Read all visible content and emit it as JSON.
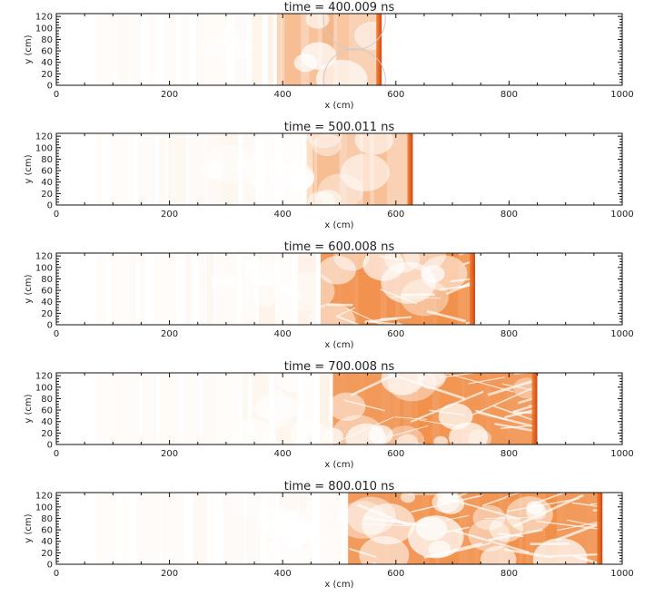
{
  "chart_data": [
    {
      "type": "heatmap",
      "title_prefix": "time =",
      "time_value": "400.009",
      "time_unit": "ns",
      "xlabel": "x (cm)",
      "ylabel": "y (cm)",
      "xlim": [
        0,
        1000
      ],
      "ylim": [
        0,
        125
      ],
      "x_ticks": [
        0,
        200,
        400,
        600,
        800,
        1000
      ],
      "y_ticks": [
        0,
        20,
        40,
        60,
        80,
        100,
        120
      ],
      "front_x": 575
    },
    {
      "type": "heatmap",
      "title_prefix": "time =",
      "time_value": "500.011",
      "time_unit": "ns",
      "xlabel": "x (cm)",
      "ylabel": "y (cm)",
      "xlim": [
        0,
        1000
      ],
      "ylim": [
        0,
        125
      ],
      "x_ticks": [
        0,
        200,
        400,
        600,
        800,
        1000
      ],
      "y_ticks": [
        0,
        20,
        40,
        60,
        80,
        100,
        120
      ],
      "front_x": 630
    },
    {
      "type": "heatmap",
      "title_prefix": "time =",
      "time_value": "600.008",
      "time_unit": "ns",
      "xlabel": "x (cm)",
      "ylabel": "y (cm)",
      "xlim": [
        0,
        1000
      ],
      "ylim": [
        0,
        125
      ],
      "x_ticks": [
        0,
        200,
        400,
        600,
        800,
        1000
      ],
      "y_ticks": [
        0,
        20,
        40,
        60,
        80,
        100,
        120
      ],
      "front_x": 740
    },
    {
      "type": "heatmap",
      "title_prefix": "time =",
      "time_value": "700.008",
      "time_unit": "ns",
      "xlabel": "x (cm)",
      "ylabel": "y (cm)",
      "xlim": [
        0,
        1000
      ],
      "ylim": [
        0,
        125
      ],
      "x_ticks": [
        0,
        200,
        400,
        600,
        800,
        1000
      ],
      "y_ticks": [
        0,
        20,
        40,
        60,
        80,
        100,
        120
      ],
      "front_x": 850
    },
    {
      "type": "heatmap",
      "title_prefix": "time =",
      "time_value": "800.010",
      "time_unit": "ns",
      "xlabel": "x (cm)",
      "ylabel": "y (cm)",
      "xlim": [
        0,
        1000
      ],
      "ylim": [
        0,
        125
      ],
      "x_ticks": [
        0,
        200,
        400,
        600,
        800,
        1000
      ],
      "y_ticks": [
        0,
        20,
        40,
        60,
        80,
        100,
        120
      ],
      "front_x": 965
    }
  ],
  "colors": {
    "light": "#fbdcc0",
    "mid": "#f6a05a",
    "dark": "#ed7b2a",
    "deep": "#d2440f",
    "axis": "#111111"
  }
}
